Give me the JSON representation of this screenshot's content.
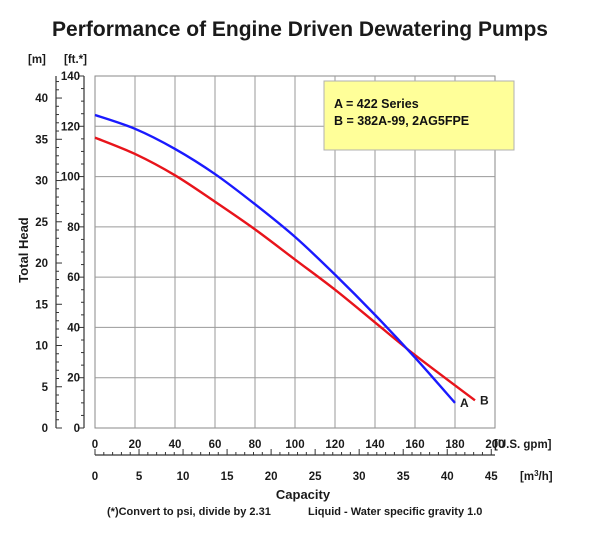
{
  "chart_data": {
    "type": "line",
    "title": "Performance of Engine Driven Dewatering Pumps",
    "xlabel": "Capacity",
    "ylabel": "Total Head",
    "x_unit_primary": "[U.S. gpm]",
    "x_unit_secondary_prefix": "[m",
    "x_unit_secondary_sup": "3",
    "x_unit_secondary_suffix": "/h]",
    "y_unit_left": "[m]",
    "y_unit_right": "[ft.*]",
    "xlim": [
      0,
      200
    ],
    "ylim_ft": [
      0,
      140
    ],
    "ylim_m": [
      0,
      42.67
    ],
    "x_ticks_gpm": [
      "0",
      "20",
      "40",
      "60",
      "80",
      "100",
      "120",
      "140",
      "160",
      "180",
      "200"
    ],
    "x_ticks_m3h": [
      "0",
      "5",
      "10",
      "15",
      "20",
      "25",
      "30",
      "35",
      "40",
      "45"
    ],
    "y_ticks_ft": [
      "0",
      "20",
      "40",
      "60",
      "80",
      "100",
      "120",
      "140"
    ],
    "y_ticks_m": [
      "0",
      "5",
      "10",
      "15",
      "20",
      "25",
      "30",
      "35",
      "40"
    ],
    "grid": true,
    "legend_position": "top-right",
    "legend_lines": [
      "A = 422 Series",
      "B = 382A-99, 2AG5FPE"
    ],
    "series": [
      {
        "name": "A",
        "color": "#1a1aff",
        "x": [
          0,
          20,
          40,
          60,
          80,
          100,
          120,
          140,
          160,
          180
        ],
        "y": [
          124.5,
          119,
          111,
          101,
          89,
          76,
          61,
          45,
          28,
          10
        ]
      },
      {
        "name": "B",
        "color": "#e8141b",
        "x": [
          0,
          20,
          40,
          60,
          80,
          100,
          120,
          140,
          160,
          190
        ],
        "y": [
          115.5,
          109,
          100.5,
          90,
          79,
          67,
          55,
          42,
          29,
          11
        ]
      }
    ],
    "curve_labels": [
      "A",
      "B"
    ],
    "notes": {
      "left": "(*)Convert to psi, divide by 2.31",
      "right": "Liquid - Water specific gravity 1.0"
    }
  }
}
